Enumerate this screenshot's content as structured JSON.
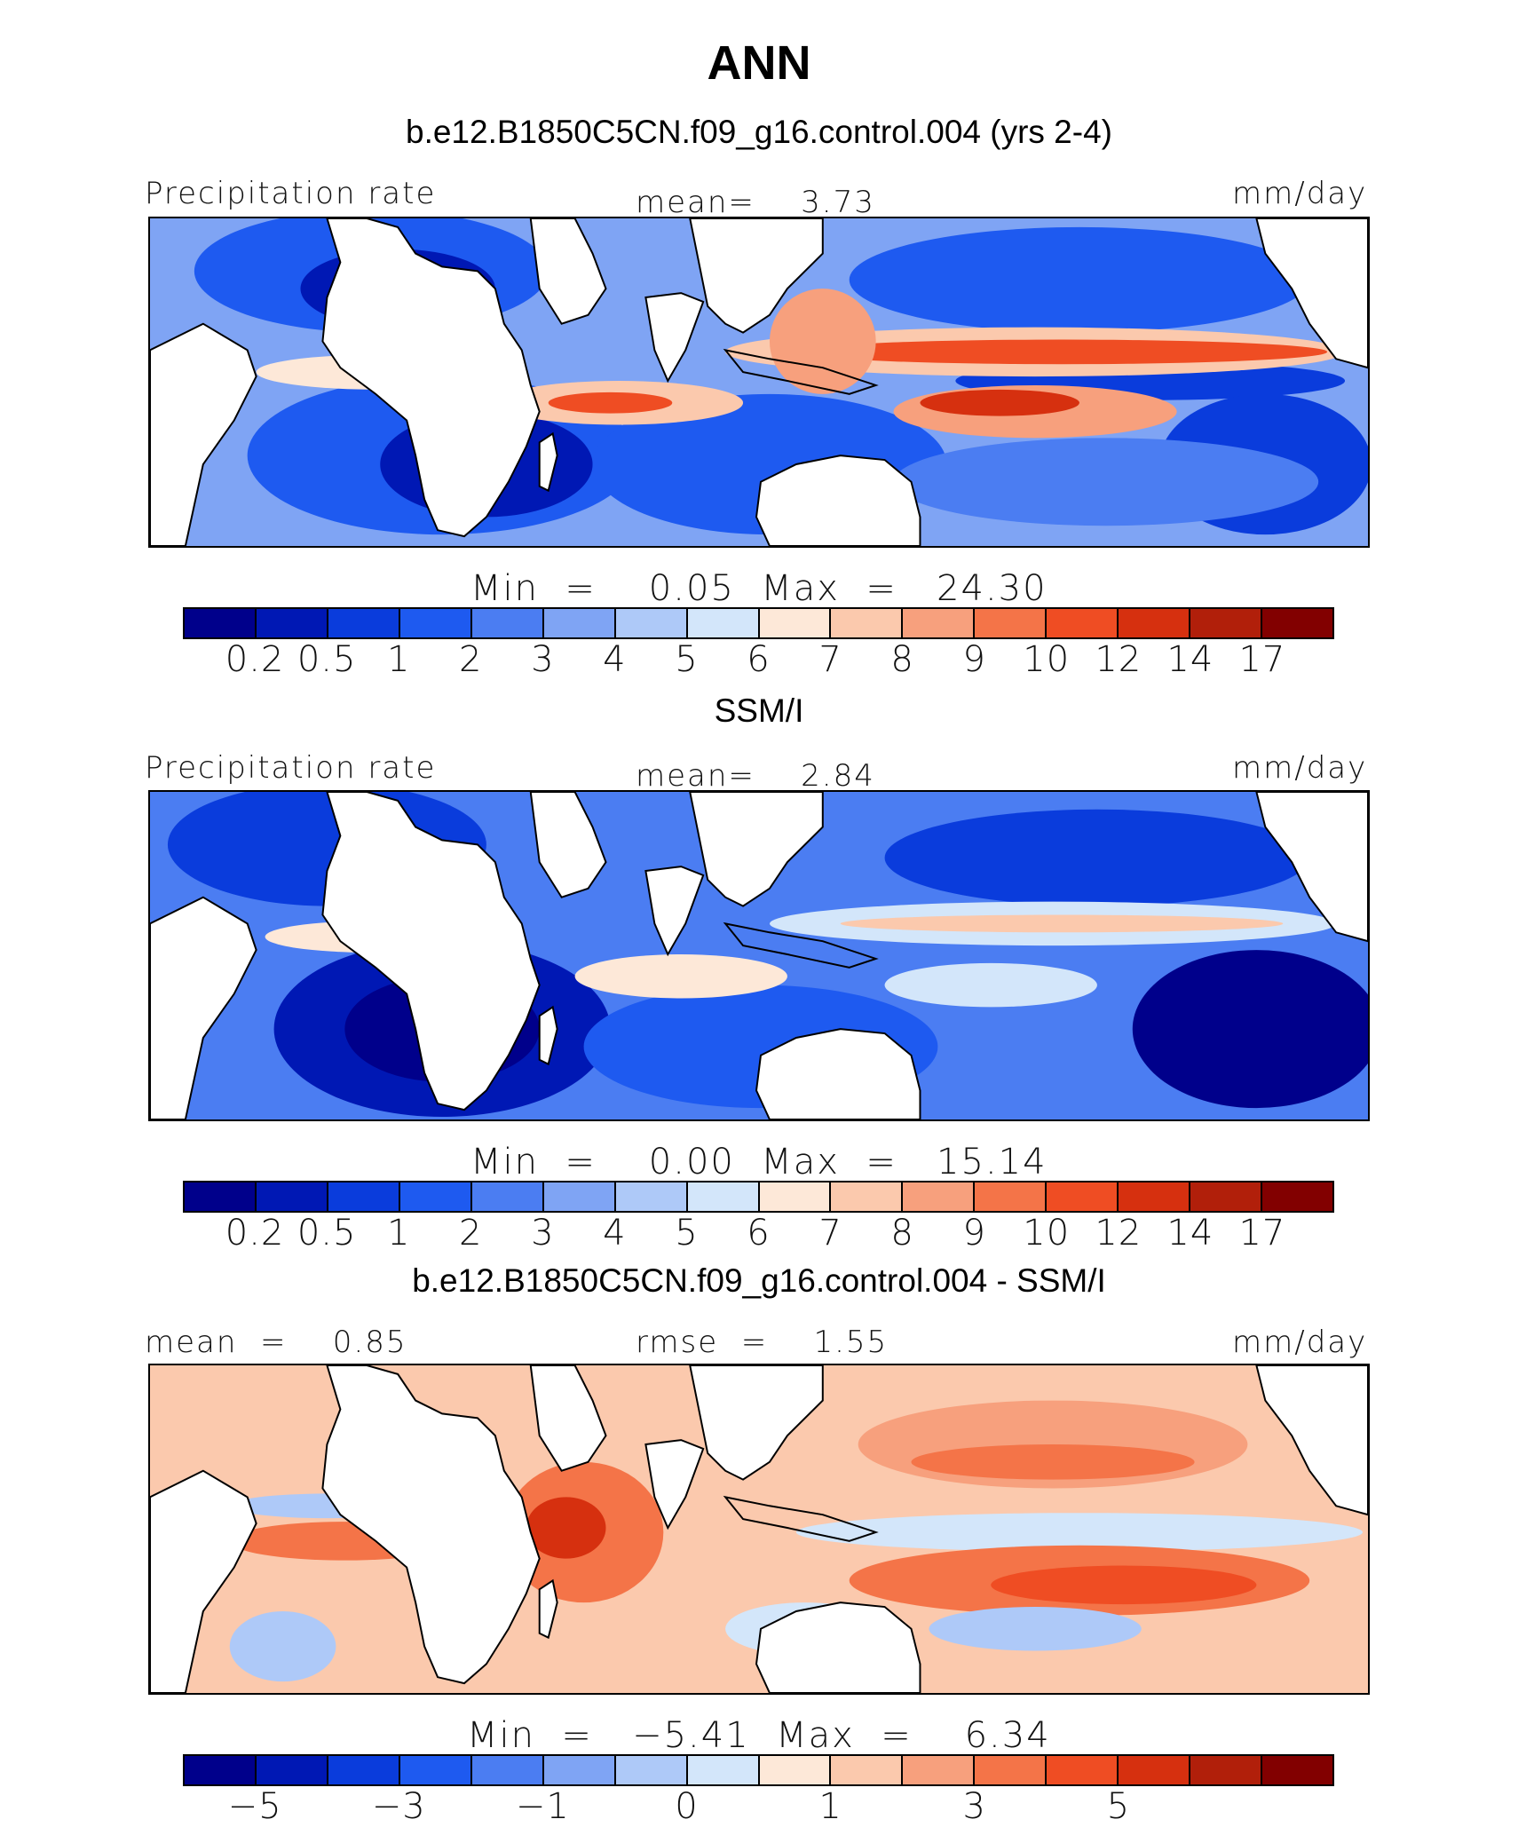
{
  "title": "ANN",
  "panels": [
    {
      "id": "model",
      "subtitle": "b.e12.B1850C5CN.f09_g16.control.004 (yrs 2-4)",
      "left_label": "Precipitation rate",
      "center_label": "mean=    3.73",
      "right_label": "mm/day",
      "minmax": "Min  =    0.05  Max  =   24.30",
      "ticks": [
        "0.2",
        "0.5",
        "1",
        "2",
        "3",
        "4",
        "5",
        "6",
        "7",
        "8",
        "9",
        "10",
        "12",
        "14",
        "17"
      ],
      "field": "model"
    },
    {
      "id": "obs",
      "subtitle": "SSM/I",
      "left_label": "Precipitation rate",
      "center_label": "mean=    2.84",
      "right_label": "mm/day",
      "minmax": "Min  =    0.00  Max  =   15.14",
      "ticks": [
        "0.2",
        "0.5",
        "1",
        "2",
        "3",
        "4",
        "5",
        "6",
        "7",
        "8",
        "9",
        "10",
        "12",
        "14",
        "17"
      ],
      "field": "obs"
    },
    {
      "id": "diff",
      "subtitle": "b.e12.B1850C5CN.f09_g16.control.004 - SSM/I",
      "left_label": "mean  =    0.85",
      "center_label": "rmse  =    1.55",
      "right_label": "mm/day",
      "minmax": "Min  =   −5.41  Max  =    6.34",
      "ticks": [
        "−5",
        "",
        "−3",
        "",
        "−1",
        "",
        "0",
        "",
        "1",
        "",
        "3",
        "",
        "5",
        "",
        ""
      ],
      "field": "diff"
    }
  ],
  "colorbar_colors": [
    "#00008b",
    "#0018b4",
    "#0a3cdc",
    "#1e5af0",
    "#4b7df2",
    "#7fa4f4",
    "#aec9f8",
    "#d3e6fa",
    "#fde8d8",
    "#fbc9ad",
    "#f7a07d",
    "#f47448",
    "#ef4d23",
    "#d6300f",
    "#b11f0a",
    "#820000"
  ]
}
